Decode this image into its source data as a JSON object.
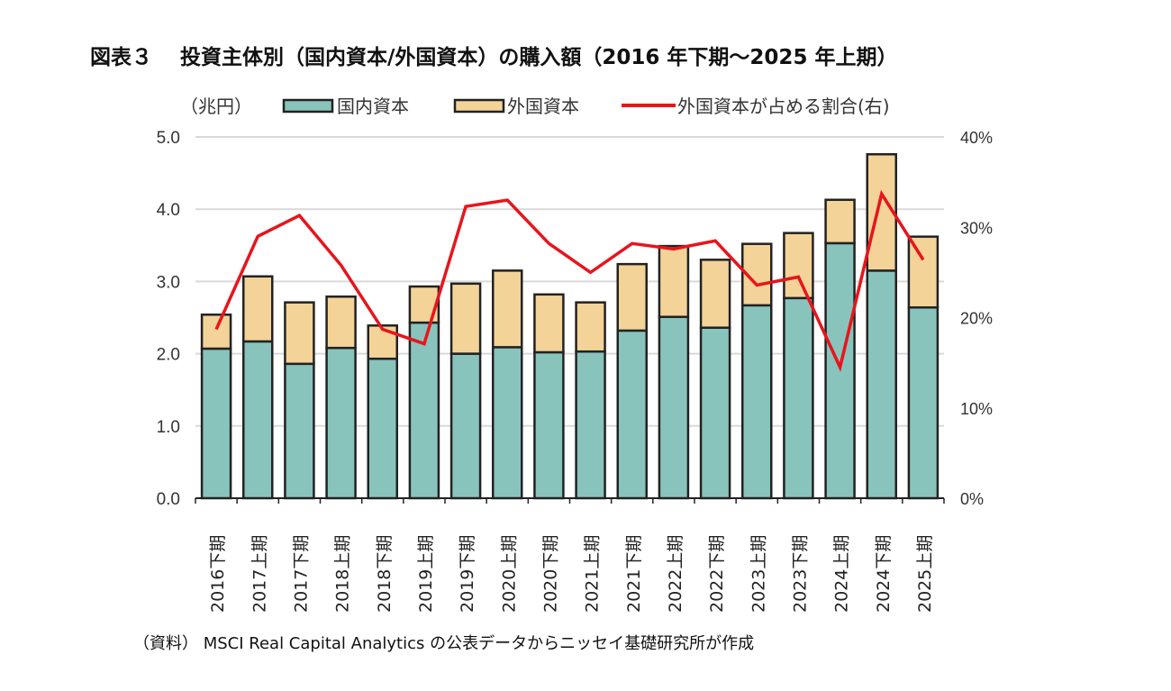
{
  "title": "図表３　 投資主体別（国内資本/外国資本）の購入額（2016 年下期～2025 年上期）",
  "source": "（資料） MSCI Real Capital Analytics の公表データからニッセイ基礎研究所が作成",
  "chart_data": {
    "type": "bar",
    "stacked": true,
    "unit_label": "（兆円）",
    "categories": [
      "2016下期",
      "2017上期",
      "2017下期",
      "2018上期",
      "2018下期",
      "2019上期",
      "2019下期",
      "2020上期",
      "2020下期",
      "2021上期",
      "2021下期",
      "2022上期",
      "2022下期",
      "2023上期",
      "2023下期",
      "2024上期",
      "2024下期",
      "2025上期"
    ],
    "series": [
      {
        "name": "国内資本",
        "type": "bar",
        "axis": "left",
        "color": "#88c4bc",
        "values": [
          2.07,
          2.17,
          1.86,
          2.08,
          1.93,
          2.43,
          2.0,
          2.09,
          2.02,
          2.03,
          2.32,
          2.51,
          2.36,
          2.67,
          2.77,
          3.53,
          3.15,
          2.64
        ]
      },
      {
        "name": "外国資本",
        "type": "bar",
        "axis": "left",
        "color": "#f3d398",
        "values": [
          0.47,
          0.9,
          0.85,
          0.71,
          0.46,
          0.5,
          0.97,
          1.06,
          0.8,
          0.68,
          0.92,
          0.98,
          0.94,
          0.85,
          0.9,
          0.6,
          1.61,
          0.98
        ]
      },
      {
        "name": "外国資本が占める割合(右)",
        "type": "line",
        "axis": "right",
        "color": "#e8141c",
        "values": [
          18.7,
          29.0,
          31.3,
          25.8,
          18.7,
          17.1,
          32.3,
          33.0,
          28.2,
          25.0,
          28.2,
          27.6,
          28.5,
          23.6,
          24.5,
          14.5,
          33.7,
          26.4
        ]
      }
    ],
    "ylim": [
      0,
      5
    ],
    "yticks": [
      "0.0",
      "1.0",
      "2.0",
      "3.0",
      "4.0",
      "5.0"
    ],
    "y2lim": [
      0,
      40
    ],
    "y2ticks": [
      "0%",
      "10%",
      "20%",
      "30%",
      "40%"
    ],
    "grid": true,
    "legend": "top"
  }
}
